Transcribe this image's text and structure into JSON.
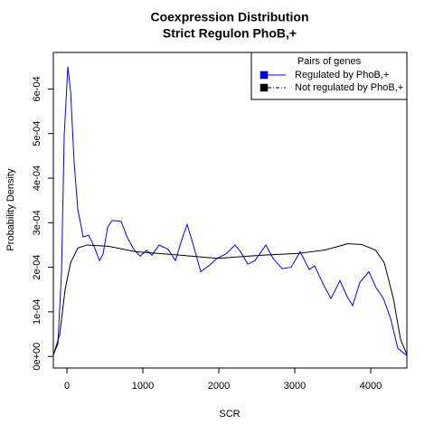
{
  "chart_data": {
    "type": "line",
    "title": [
      "Coexpression Distribution",
      "Strict Regulon PhoB,+"
    ],
    "x_label": "SCR",
    "y_label": "Probability Density",
    "legend_title": "Pairs of genes",
    "legend_position": "top-right",
    "xlim": [
      -179,
      4476
    ],
    "ylim": [
      -2.6e-05,
      0.000682
    ],
    "xticks": [
      0,
      1000,
      2000,
      3000,
      4000
    ],
    "yticks": [
      {
        "value": 0,
        "label": "0e+00"
      },
      {
        "value": 0.0001,
        "label": "1e-04"
      },
      {
        "value": 0.0002,
        "label": "2e-04"
      },
      {
        "value": 0.0003,
        "label": "3e-04"
      },
      {
        "value": 0.0004,
        "label": "4e-04"
      },
      {
        "value": 0.0005,
        "label": "5e-04"
      },
      {
        "value": 0.0006,
        "label": "6e-04"
      }
    ],
    "series": [
      {
        "name": "Regulated by PhoB,+",
        "color": "#0000ff",
        "x": [
          -179,
          -119,
          -71,
          -36,
          12,
          48,
          95,
          143,
          214,
          286,
          357,
          429,
          476,
          536,
          595,
          714,
          786,
          881,
          964,
          1048,
          1119,
          1214,
          1333,
          1429,
          1512,
          1583,
          1655,
          1762,
          1881,
          1976,
          2095,
          2214,
          2286,
          2381,
          2476,
          2619,
          2714,
          2833,
          2952,
          3071,
          3190,
          3262,
          3381,
          3476,
          3595,
          3690,
          3762,
          3857,
          3976,
          4071,
          4167,
          4262,
          4357,
          4476
        ],
        "values": [
          4e-06,
          2.8e-05,
          0.00019,
          0.000495,
          0.00065,
          0.000595,
          0.000435,
          0.00033,
          0.000268,
          0.000272,
          0.000247,
          0.000215,
          0.00023,
          0.00029,
          0.000305,
          0.000303,
          0.00027,
          0.00024,
          0.000225,
          0.000238,
          0.000227,
          0.00025,
          0.00024,
          0.000215,
          0.000262,
          0.000296,
          0.000255,
          0.00019,
          0.000205,
          0.00022,
          0.00023,
          0.00025,
          0.000235,
          0.000207,
          0.000215,
          0.00025,
          0.00022,
          0.000197,
          0.0002,
          0.000235,
          0.000195,
          0.000203,
          0.00016,
          0.00013,
          0.00017,
          0.000134,
          0.000114,
          0.000166,
          0.00019,
          0.000154,
          0.00013,
          8.5e-05,
          1.8e-05,
          2e-06
        ]
      },
      {
        "name": "Not regulated by PhoB,+",
        "color": "#000000",
        "x": [
          -179,
          -95,
          -24,
          48,
          143,
          262,
          548,
          905,
          1500,
          1976,
          2571,
          3048,
          3405,
          3702,
          3881,
          4060,
          4179,
          4298,
          4393,
          4476
        ],
        "values": [
          2e-06,
          4.9e-05,
          0.00015,
          0.00021,
          0.000243,
          0.00025,
          0.000247,
          0.000235,
          0.000227,
          0.00022,
          0.000227,
          0.000231,
          0.000239,
          0.000253,
          0.000251,
          0.000239,
          0.00021,
          0.00013,
          3.8e-05,
          4e-06
        ]
      }
    ]
  }
}
